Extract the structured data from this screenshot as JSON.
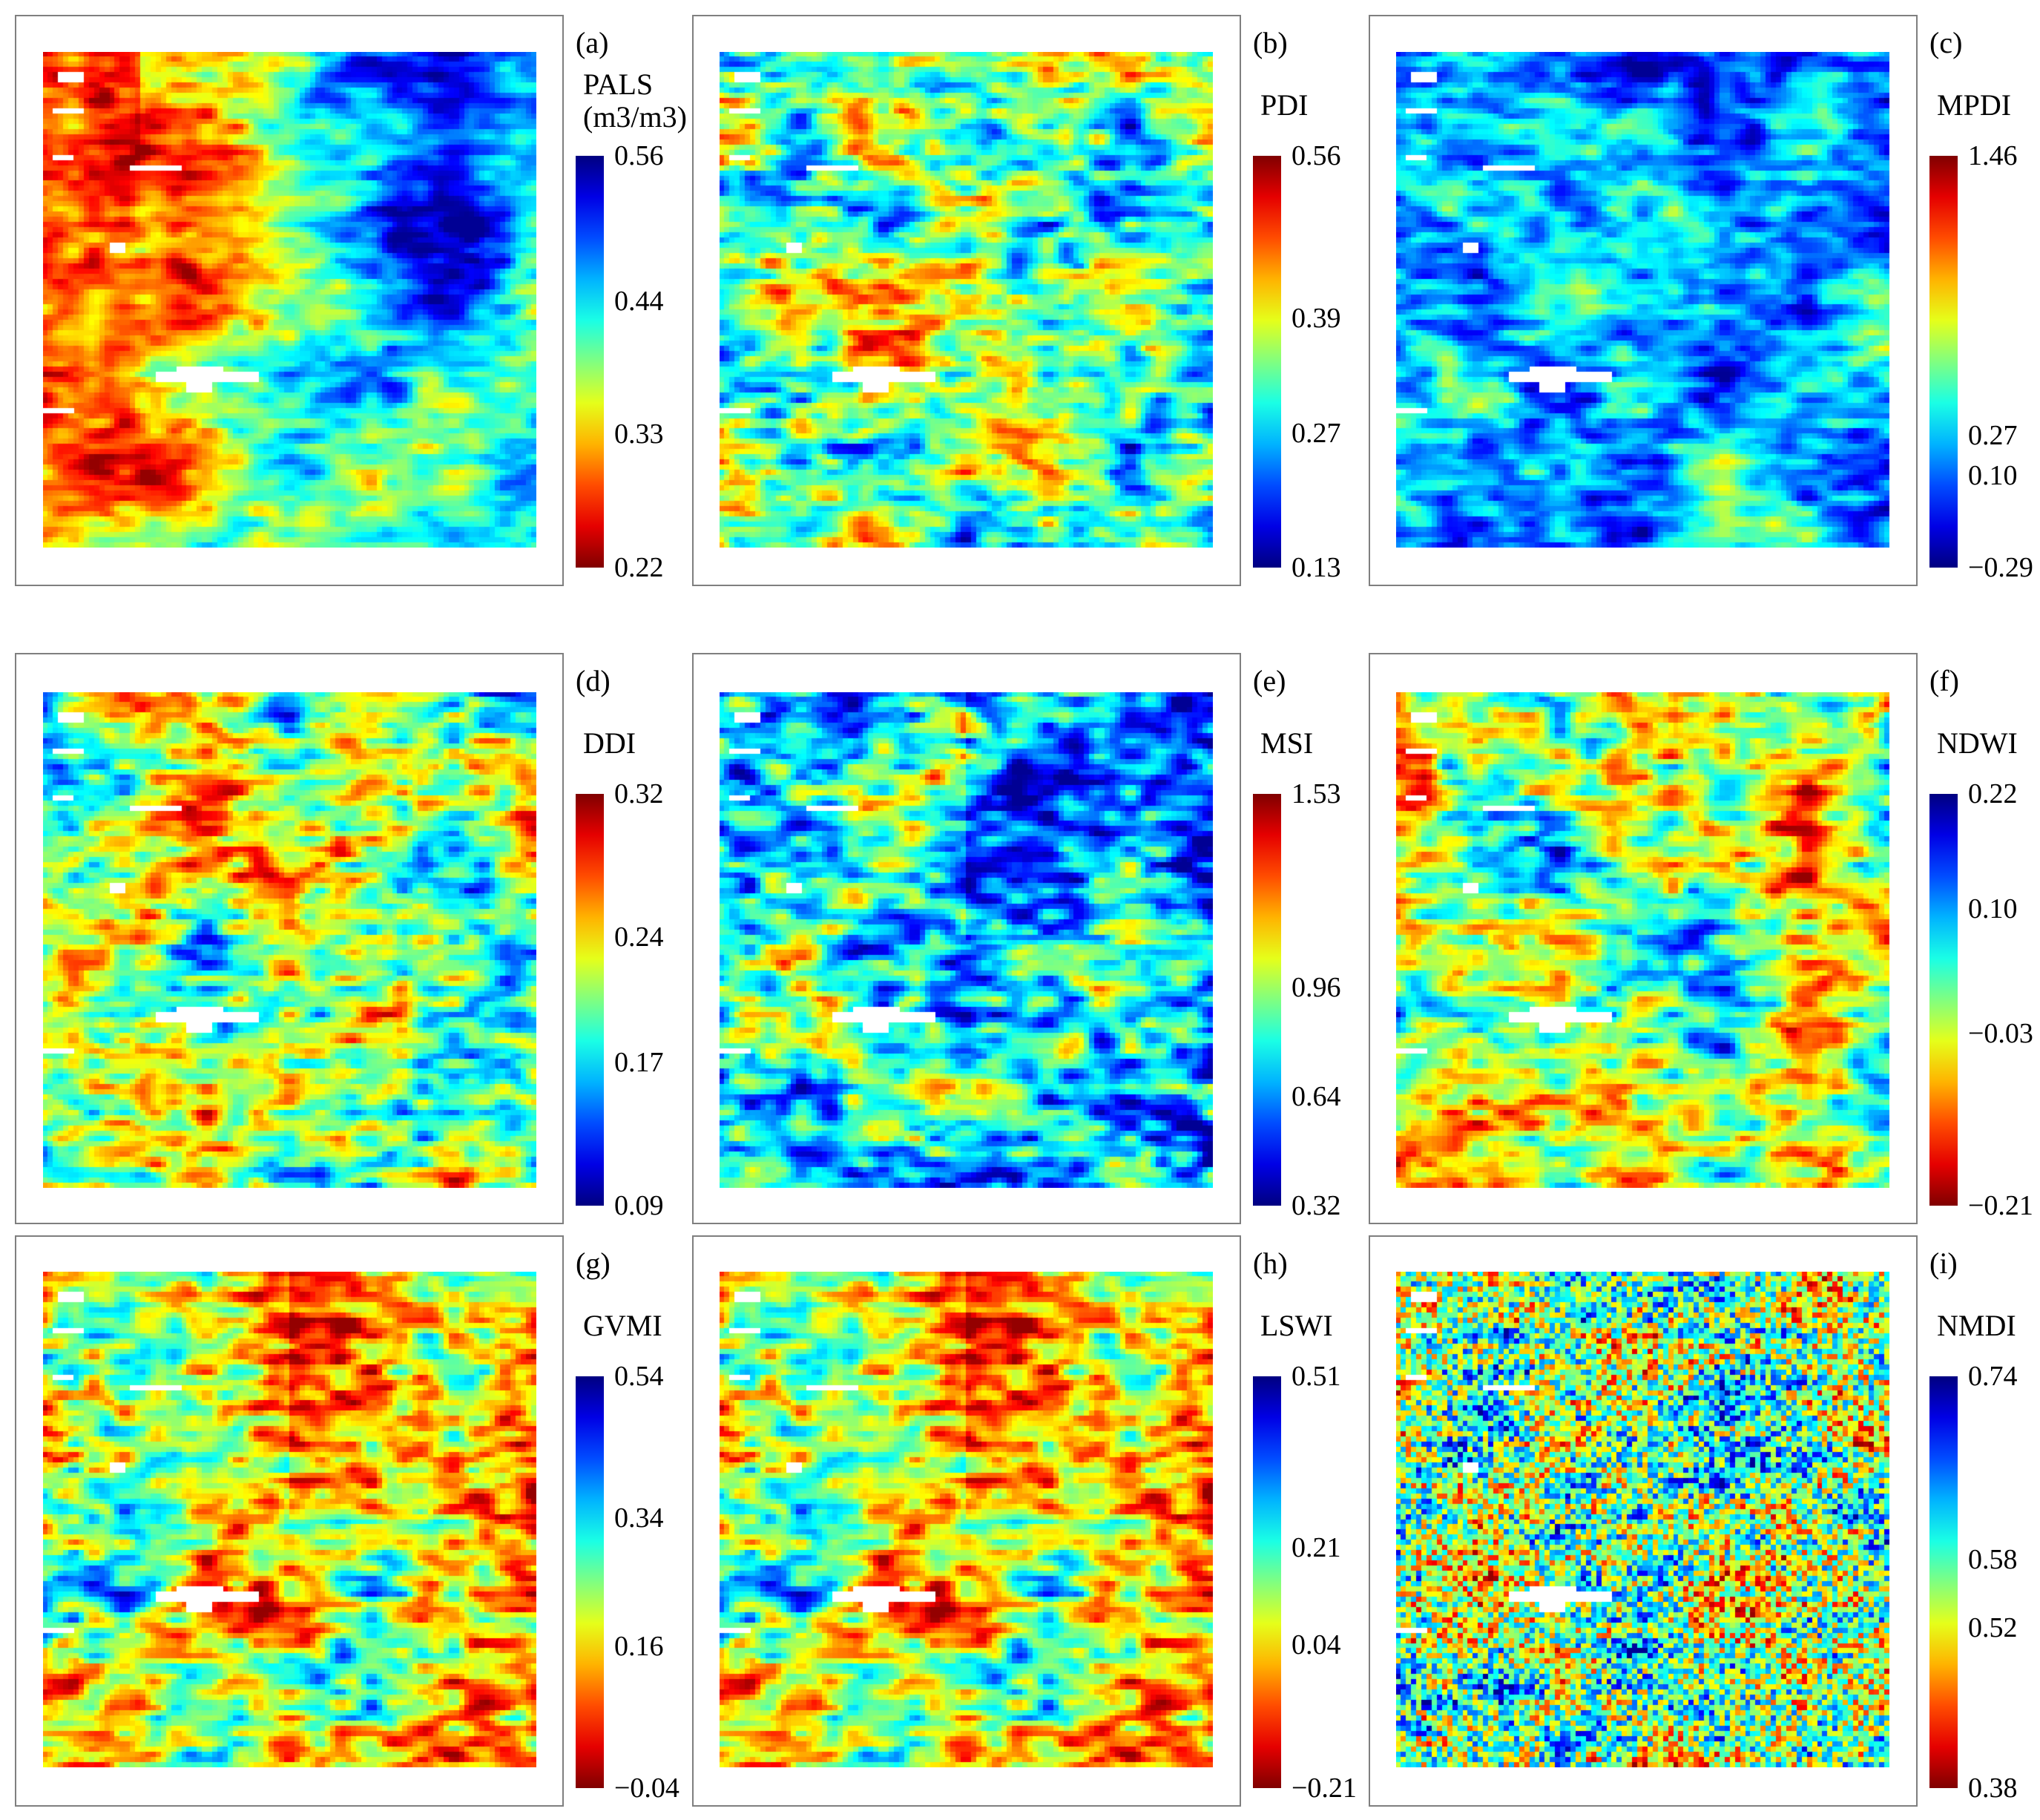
{
  "chart_data": [
    {
      "type": "heatmap",
      "panel": "(a)",
      "title_lines": [
        "PALS",
        "(m3/m3)"
      ],
      "colormap": "jet",
      "reverse": true,
      "seed": 11,
      "pattern": "pals",
      "ticks": [
        0.56,
        0.44,
        0.33,
        0.22
      ],
      "tick_labels": [
        "0.56",
        "0.44",
        "0.33",
        "0.22"
      ]
    },
    {
      "type": "heatmap",
      "panel": "(b)",
      "title_lines": [
        "PDI"
      ],
      "colormap": "jet",
      "reverse": false,
      "seed": 23,
      "pattern": "mid",
      "ticks": [
        0.56,
        0.39,
        0.27,
        0.13
      ],
      "tick_labels": [
        "0.56",
        "0.39",
        "0.27",
        "0.13"
      ]
    },
    {
      "type": "heatmap",
      "panel": "(c)",
      "title_lines": [
        "MPDI"
      ],
      "colormap": "jet",
      "reverse": false,
      "seed": 37,
      "pattern": "cyan",
      "ticks": [
        1.46,
        0.27,
        0.1,
        -0.29
      ],
      "tick_labels": [
        "1.46",
        "0.27",
        "0.10",
        "−0.29"
      ]
    },
    {
      "type": "heatmap",
      "panel": "(d)",
      "title_lines": [
        "DDI"
      ],
      "colormap": "jet",
      "reverse": false,
      "seed": 41,
      "pattern": "mid",
      "ticks": [
        0.32,
        0.24,
        0.17,
        0.09
      ],
      "tick_labels": [
        "0.32",
        "0.24",
        "0.17",
        "0.09"
      ]
    },
    {
      "type": "heatmap",
      "panel": "(e)",
      "title_lines": [
        "MSI"
      ],
      "colormap": "jet",
      "reverse": false,
      "seed": 53,
      "pattern": "blue",
      "ticks": [
        1.53,
        0.96,
        0.64,
        0.32
      ],
      "tick_labels": [
        "1.53",
        "0.96",
        "0.64",
        "0.32"
      ]
    },
    {
      "type": "heatmap",
      "panel": "(f)",
      "title_lines": [
        "NDWI"
      ],
      "colormap": "jet",
      "reverse": true,
      "seed": 67,
      "pattern": "mid",
      "ticks": [
        0.22,
        0.1,
        -0.03,
        -0.21
      ],
      "tick_labels": [
        "0.22",
        "0.10",
        "−0.03",
        "−0.21"
      ]
    },
    {
      "type": "heatmap",
      "panel": "(g)",
      "title_lines": [
        "GVMI"
      ],
      "colormap": "jet",
      "reverse": true,
      "seed": 71,
      "pattern": "blue",
      "ticks": [
        0.54,
        0.34,
        0.16,
        -0.04
      ],
      "tick_labels": [
        "0.54",
        "0.34",
        "0.16",
        "−0.04"
      ]
    },
    {
      "type": "heatmap",
      "panel": "(h)",
      "title_lines": [
        "LSWI"
      ],
      "colormap": "jet",
      "reverse": true,
      "seed": 71,
      "pattern": "blue",
      "ticks": [
        0.51,
        0.21,
        0.04,
        -0.21
      ],
      "tick_labels": [
        "0.51",
        "0.21",
        "0.04",
        "−0.21"
      ]
    },
    {
      "type": "heatmap",
      "panel": "(i)",
      "title_lines": [
        "NMDI"
      ],
      "colormap": "jet",
      "reverse": true,
      "seed": 89,
      "pattern": "noisy",
      "ticks": [
        0.74,
        0.58,
        0.52,
        0.38
      ],
      "tick_labels": [
        "0.74",
        "0.58",
        "0.52",
        "0.38"
      ]
    }
  ]
}
